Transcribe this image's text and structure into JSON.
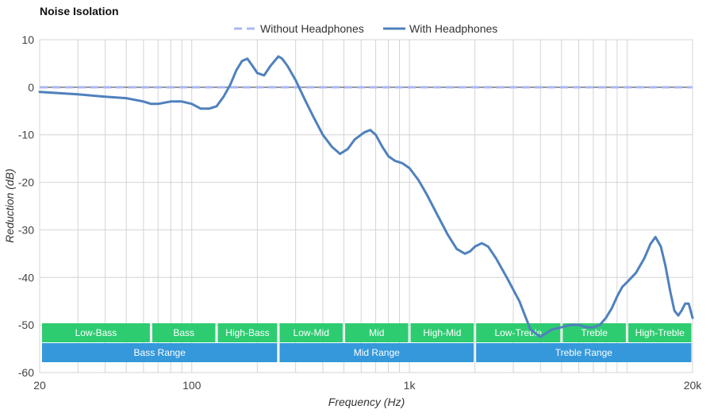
{
  "chart_data": {
    "type": "line",
    "title": "Noise Isolation",
    "xlabel": "Frequency (Hz)",
    "ylabel": "Reduction (dB)",
    "x_scale": "log",
    "xlim": [
      20,
      20000
    ],
    "ylim": [
      -60,
      10
    ],
    "grid": true,
    "legend_placement": "top-center",
    "x_ticks": [
      {
        "value": 20,
        "label": "20"
      },
      {
        "value": 100,
        "label": "100"
      },
      {
        "value": 1000,
        "label": "1k"
      },
      {
        "value": 20000,
        "label": "20k"
      }
    ],
    "y_ticks": [
      10,
      0,
      -10,
      -20,
      -30,
      -40,
      -50,
      -60
    ],
    "series": [
      {
        "name": "Without Headphones",
        "color": "#aab8f2",
        "style": "dashed",
        "points": [
          [
            20,
            0
          ],
          [
            20000,
            0
          ]
        ]
      },
      {
        "name": "With Headphones",
        "color": "#4f81bd",
        "style": "solid",
        "points": [
          [
            20,
            -1.0
          ],
          [
            30,
            -1.5
          ],
          [
            40,
            -2.0
          ],
          [
            50,
            -2.3
          ],
          [
            60,
            -3.0
          ],
          [
            65,
            -3.5
          ],
          [
            70,
            -3.5
          ],
          [
            80,
            -3.0
          ],
          [
            90,
            -3.0
          ],
          [
            100,
            -3.5
          ],
          [
            110,
            -4.5
          ],
          [
            120,
            -4.5
          ],
          [
            130,
            -4.0
          ],
          [
            140,
            -2.0
          ],
          [
            150,
            0.5
          ],
          [
            160,
            3.5
          ],
          [
            170,
            5.5
          ],
          [
            180,
            6.0
          ],
          [
            190,
            4.5
          ],
          [
            200,
            3.0
          ],
          [
            215,
            2.5
          ],
          [
            230,
            4.5
          ],
          [
            250,
            6.5
          ],
          [
            260,
            6.0
          ],
          [
            275,
            4.5
          ],
          [
            300,
            1.5
          ],
          [
            330,
            -2.5
          ],
          [
            360,
            -6.0
          ],
          [
            400,
            -10.0
          ],
          [
            440,
            -12.5
          ],
          [
            480,
            -14.0
          ],
          [
            520,
            -13.0
          ],
          [
            560,
            -11.0
          ],
          [
            620,
            -9.5
          ],
          [
            660,
            -9.0
          ],
          [
            700,
            -10.0
          ],
          [
            750,
            -12.5
          ],
          [
            800,
            -14.5
          ],
          [
            860,
            -15.5
          ],
          [
            930,
            -16.0
          ],
          [
            1000,
            -17.0
          ],
          [
            1100,
            -19.5
          ],
          [
            1200,
            -22.5
          ],
          [
            1350,
            -27.0
          ],
          [
            1500,
            -31.0
          ],
          [
            1650,
            -34.0
          ],
          [
            1800,
            -35.0
          ],
          [
            1900,
            -34.5
          ],
          [
            2000,
            -33.5
          ],
          [
            2150,
            -32.8
          ],
          [
            2300,
            -33.5
          ],
          [
            2500,
            -36.0
          ],
          [
            2800,
            -40.0
          ],
          [
            3200,
            -45.0
          ],
          [
            3600,
            -51.0
          ],
          [
            4000,
            -52.5
          ],
          [
            4500,
            -51.0
          ],
          [
            5000,
            -50.5
          ],
          [
            5500,
            -50.0
          ],
          [
            6000,
            -50.0
          ],
          [
            6500,
            -50.5
          ],
          [
            7000,
            -50.5
          ],
          [
            7500,
            -50.0
          ],
          [
            8000,
            -48.5
          ],
          [
            8500,
            -46.5
          ],
          [
            9000,
            -44.0
          ],
          [
            9500,
            -42.0
          ],
          [
            10000,
            -41.0
          ],
          [
            11000,
            -39.0
          ],
          [
            12000,
            -36.0
          ],
          [
            12800,
            -33.0
          ],
          [
            13500,
            -31.5
          ],
          [
            14300,
            -33.5
          ],
          [
            15000,
            -37.5
          ],
          [
            15800,
            -43.0
          ],
          [
            16500,
            -47.0
          ],
          [
            17200,
            -48.0
          ],
          [
            17800,
            -47.0
          ],
          [
            18500,
            -45.5
          ],
          [
            19200,
            -45.5
          ],
          [
            20000,
            -48.5
          ]
        ]
      }
    ],
    "range_bands": {
      "color": "#2ecc71",
      "items": [
        {
          "label": "Low-Bass",
          "start": 20,
          "end": 65
        },
        {
          "label": "Bass",
          "start": 65,
          "end": 130
        },
        {
          "label": "High-Bass",
          "start": 130,
          "end": 250
        },
        {
          "label": "Low-Mid",
          "start": 250,
          "end": 500
        },
        {
          "label": "Mid",
          "start": 500,
          "end": 1000
        },
        {
          "label": "High-Mid",
          "start": 1000,
          "end": 2000
        },
        {
          "label": "Low-Treble",
          "start": 2000,
          "end": 5000
        },
        {
          "label": "Treble",
          "start": 5000,
          "end": 10000
        },
        {
          "label": "High-Treble",
          "start": 10000,
          "end": 20000
        }
      ]
    },
    "range_groups": {
      "color": "#3498db",
      "items": [
        {
          "label": "Bass Range",
          "start": 20,
          "end": 250
        },
        {
          "label": "Mid Range",
          "start": 250,
          "end": 2000
        },
        {
          "label": "Treble Range",
          "start": 2000,
          "end": 20000
        }
      ]
    }
  }
}
